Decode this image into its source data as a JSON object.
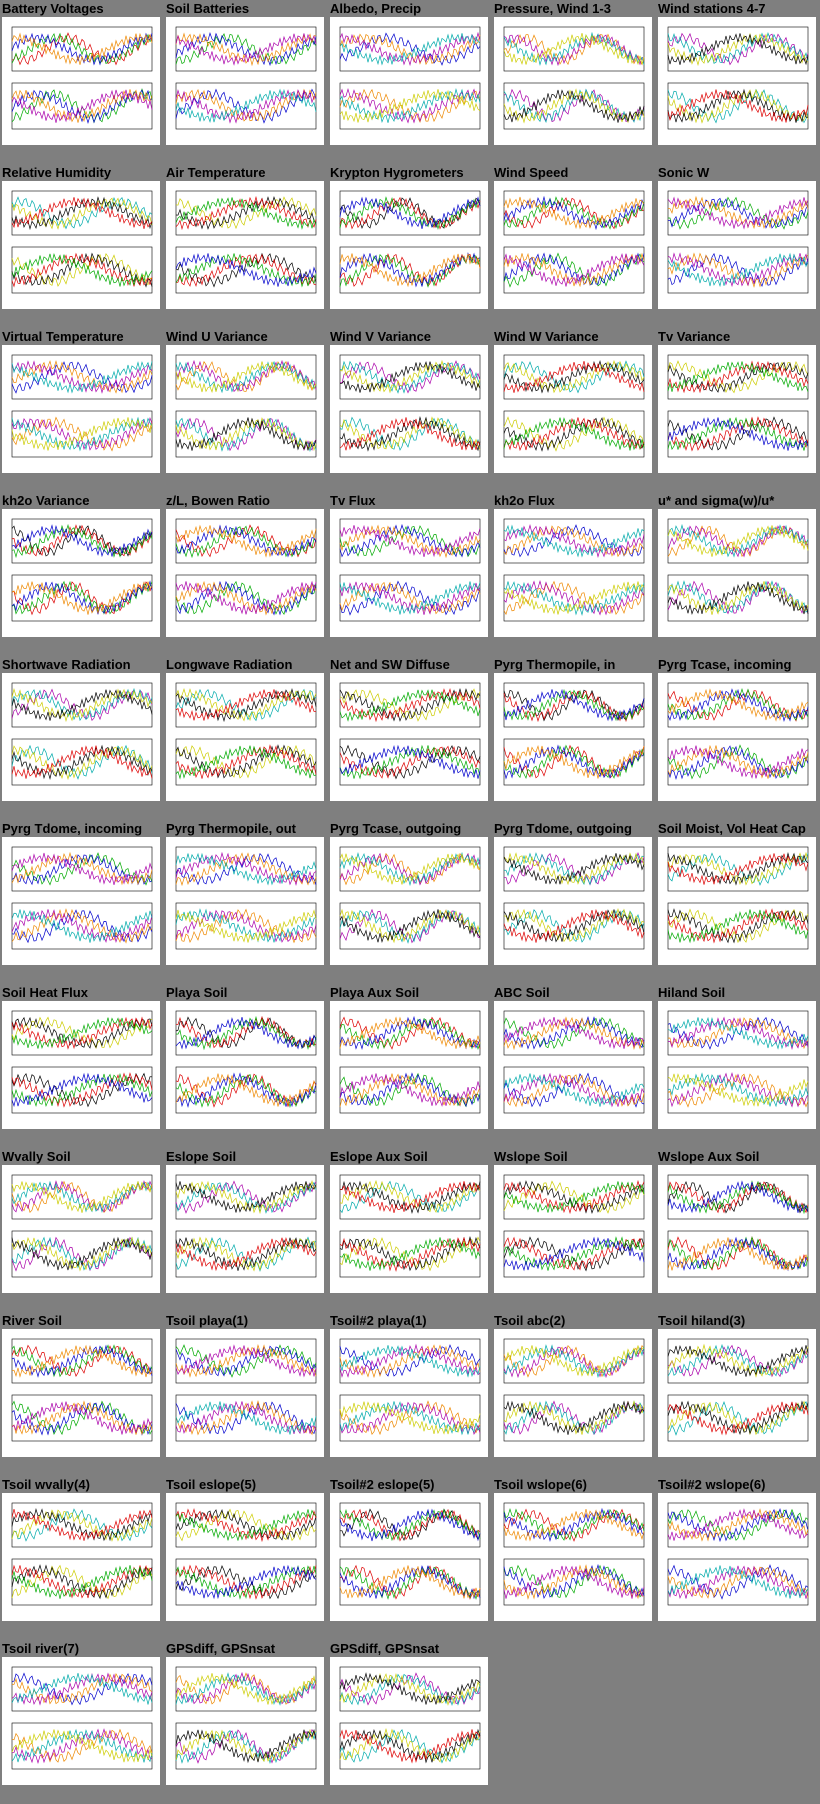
{
  "gallery": {
    "rows": [
      [
        "Battery Voltages",
        "Soil Batteries",
        "Albedo, Precip",
        "Pressure, Wind 1-3",
        "Wind stations 4-7"
      ],
      [
        "Relative Humidity",
        "Air Temperature",
        "Krypton Hygrometers",
        "Wind Speed",
        "Sonic W"
      ],
      [
        "Virtual Temperature",
        "Wind U Variance",
        "Wind V Variance",
        "Wind W Variance",
        "Tv Variance"
      ],
      [
        "kh2o Variance",
        "z/L, Bowen Ratio",
        "Tv Flux",
        "kh2o Flux",
        "u* and sigma(w)/u*"
      ],
      [
        "Shortwave Radiation",
        "Longwave Radiation",
        "Net and SW Diffuse",
        "Pyrg Thermopile, in",
        "Pyrg Tcase, incoming"
      ],
      [
        "Pyrg Tdome, incoming",
        "Pyrg Thermopile, out",
        "Pyrg Tcase, outgoing",
        "Pyrg Tdome, outgoing",
        "Soil Moist, Vol Heat Cap"
      ],
      [
        "Soil Heat Flux",
        "Playa Soil",
        "Playa Aux Soil",
        "ABC Soil",
        "Hiland Soil"
      ],
      [
        "Wvally Soil",
        "Eslope Soil",
        "Eslope Aux Soil",
        "Wslope Soil",
        "Wslope Aux Soil"
      ],
      [
        "River Soil",
        "Tsoil playa(1)",
        "Tsoil#2 playa(1)",
        "Tsoil abc(2)",
        "Tsoil hiland(3)"
      ],
      [
        "Tsoil wvally(4)",
        "Tsoil eslope(5)",
        "Tsoil#2 eslope(5)",
        "Tsoil wslope(6)",
        "Tsoil#2 wslope(6)"
      ],
      [
        "Tsoil river(7)",
        "GPSdiff, GPSnsat",
        "GPSdiff, GPSnsat"
      ]
    ]
  }
}
